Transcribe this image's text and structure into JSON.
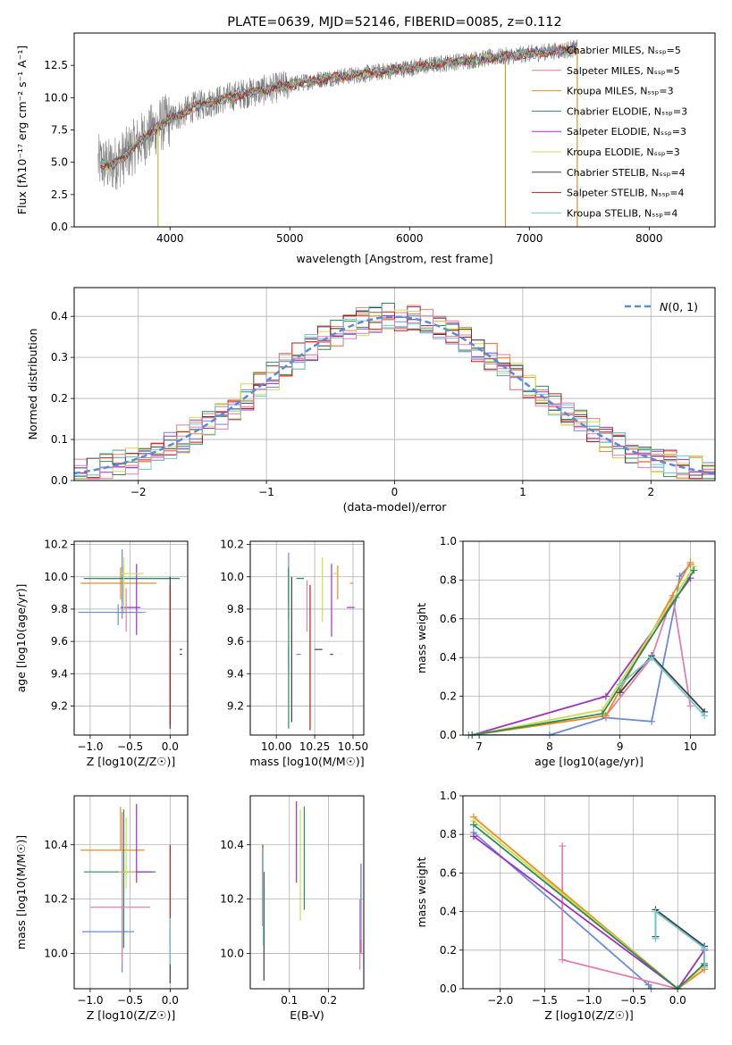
{
  "colors": {
    "chabrier_miles": "#6a8bd8",
    "salpeter_miles": "#e77d7d",
    "kroupa_miles": "#f08a1c",
    "chabrier_elodie": "#2e8b57",
    "salpeter_elodie": "#a030c0",
    "kroupa_elodie": "#c8e050",
    "chabrier_stelib": "#404040",
    "salpeter_stelib": "#c01818",
    "kroupa_stelib": "#70c8d0",
    "pink": "#e080b0",
    "gaussian": "#5b8bd8",
    "grid": "#b0b0b0",
    "data_spectrum": "#808080"
  },
  "spectrum": {
    "title": "PLATE=0639, MJD=52146, FIBERID=0085, z=0.112",
    "xlabel": "wavelength [Angstrom, rest frame]",
    "ylabel": "Flux [fλ10⁻¹⁷ erg cm⁻² s⁻¹ A⁻¹]",
    "legend": [
      {
        "label": "Chabrier MILES, N_SSP=5",
        "color_key": "chabrier_miles"
      },
      {
        "label": "Salpeter MILES, N_SSP=5",
        "color_key": "salpeter_miles"
      },
      {
        "label": "Kroupa MILES, N_SSP=3",
        "color_key": "kroupa_miles"
      },
      {
        "label": "Chabrier ELODIE, N_SSP=3",
        "color_key": "chabrier_elodie"
      },
      {
        "label": "Salpeter ELODIE, N_SSP=3",
        "color_key": "salpeter_elodie"
      },
      {
        "label": "Kroupa ELODIE, N_SSP=3",
        "color_key": "kroupa_elodie"
      },
      {
        "label": "Chabrier STELIB, N_SSP=4",
        "color_key": "chabrier_stelib"
      },
      {
        "label": "Salpeter STELIB, N_SSP=4",
        "color_key": "salpeter_stelib"
      },
      {
        "label": "Kroupa STELIB, N_SSP=4",
        "color_key": "kroupa_stelib"
      }
    ]
  },
  "chart_data": [
    {
      "type": "line",
      "id": "spectrum",
      "xlim": [
        3200,
        8550
      ],
      "ylim": [
        0,
        15
      ],
      "xticks": [
        4000,
        5000,
        6000,
        7000,
        8000
      ],
      "yticks": [
        0.0,
        2.5,
        5.0,
        7.5,
        10.0,
        12.5
      ],
      "continuum": {
        "x": [
          3400,
          3500,
          3600,
          3700,
          3800,
          3900,
          4000,
          4200,
          4400,
          4600,
          4800,
          5000,
          5300,
          5600,
          6000,
          6400,
          6800,
          7200,
          7400
        ],
        "y": [
          5.0,
          4.7,
          5.3,
          6.2,
          7.0,
          7.8,
          8.3,
          9.3,
          9.8,
          10.3,
          10.6,
          11.0,
          11.5,
          11.8,
          12.3,
          12.8,
          13.2,
          13.6,
          13.8
        ]
      },
      "dropouts": [
        3900,
        6800,
        7400
      ],
      "wavelength_range": [
        3400,
        7400
      ],
      "grid": false
    },
    {
      "type": "histogram",
      "id": "residuals",
      "xlabel": "(data-model)/error",
      "ylabel": "Normed distribution",
      "xlim": [
        -2.5,
        2.5
      ],
      "ylim": [
        0,
        0.47
      ],
      "xticks": [
        -2,
        -1,
        0,
        1,
        2
      ],
      "yticks": [
        0.0,
        0.1,
        0.2,
        0.3,
        0.4
      ],
      "bin_width": 0.1,
      "legend": "N(0,1)",
      "legend_position": "top-right",
      "grid": true
    },
    {
      "type": "scatter",
      "id": "age_vs_Z",
      "xlabel": "Z [log10(Z/Z☉)]",
      "ylabel": "age  [log10(age/yr)]",
      "xlim": [
        -1.2,
        0.22
      ],
      "ylim": [
        9.02,
        10.22
      ],
      "xticks": [
        -1.0,
        -0.5,
        0.0
      ],
      "xticklabels": [
        "−1.0",
        "−0.5",
        "0.0"
      ],
      "yticks": [
        9.2,
        9.4,
        9.6,
        9.8,
        10.0,
        10.2
      ],
      "grid": true,
      "points": [
        {
          "c": "chabrier_miles",
          "x": -0.6,
          "y": 9.99,
          "xe": [
            -0.3,
            0.6
          ],
          "ye": [
            0.25,
            0.18
          ]
        },
        {
          "c": "kroupa_miles",
          "x": -0.62,
          "y": 9.96,
          "xe": [
            -0.5,
            0.45
          ],
          "ye": [
            0.1,
            0.1
          ]
        },
        {
          "c": "chabrier_elodie",
          "x": -0.58,
          "y": 9.99,
          "xe": [
            -0.5,
            0.7
          ],
          "ye": [
            0.15,
            0.08
          ]
        },
        {
          "c": "salpeter_elodie",
          "x": -0.42,
          "y": 9.81,
          "xe": [
            -0.2,
            0.05
          ],
          "ye": [
            0.17,
            0.27
          ]
        },
        {
          "c": "kroupa_elodie",
          "x": -0.58,
          "y": 10.02,
          "xe": [
            -0.03,
            0.25
          ],
          "ye": [
            0.25,
            0.1
          ]
        },
        {
          "c": "pink",
          "x": -0.55,
          "y": 9.78,
          "xe": [
            -0.15,
            0.25
          ],
          "ye": [
            0.12,
            0.15
          ]
        },
        {
          "c": "chabrier_miles",
          "x": -0.65,
          "y": 9.78,
          "xe": [
            -0.5,
            0.3
          ],
          "ye": [
            0.08,
            0.05
          ]
        },
        {
          "c": "chabrier_stelib",
          "x": 0.0,
          "y": 9.55,
          "xe": [
            0.12,
            0.15
          ],
          "ye": [
            0.49,
            0.45
          ]
        },
        {
          "c": "salpeter_stelib",
          "x": 0.0,
          "y": 9.52,
          "xe": [
            0.12,
            0.15
          ],
          "ye": [
            0.44,
            0.43
          ]
        }
      ]
    },
    {
      "type": "scatter",
      "id": "age_vs_mass",
      "xlabel": "mass [log10(M/M☉)]",
      "ylabel": "",
      "xlim": [
        9.83,
        10.57
      ],
      "ylim": [
        9.02,
        10.22
      ],
      "xticks": [
        10.0,
        10.25,
        10.5
      ],
      "yticks": [
        9.2,
        9.4,
        9.6,
        9.8,
        10.0,
        10.2
      ],
      "grid": true,
      "points": [
        {
          "c": "chabrier_miles",
          "x": 10.08,
          "y": 9.99,
          "xe": [
            0.1,
            0.08
          ],
          "ye": [
            0.25,
            0.16
          ]
        },
        {
          "c": "kroupa_miles",
          "x": 10.4,
          "y": 9.96,
          "xe": [
            0.08,
            0.1
          ],
          "ye": [
            0.1,
            0.11
          ]
        },
        {
          "c": "chabrier_elodie",
          "x": 10.08,
          "y": 9.99,
          "xe": [
            0.1,
            0.05
          ],
          "ye": [
            0.15,
            0.07
          ]
        },
        {
          "c": "salpeter_elodie",
          "x": 10.36,
          "y": 9.81,
          "xe": [
            0.1,
            0.15
          ],
          "ye": [
            0.18,
            0.27
          ]
        },
        {
          "c": "kroupa_elodie",
          "x": 10.3,
          "y": 10.02,
          "xe": [
            0.07,
            0.1
          ],
          "ye": [
            0.3,
            0.1
          ]
        },
        {
          "c": "pink",
          "x": 10.2,
          "y": 9.78,
          "xe": [
            0.1,
            0.1
          ],
          "ye": [
            0.12,
            0.2
          ]
        },
        {
          "c": "chabrier_miles",
          "x": 10.08,
          "y": 9.52,
          "xe": [
            0.08,
            0.05
          ],
          "ye": [
            0.1,
            0.05
          ]
        },
        {
          "c": "chabrier_stelib",
          "x": 10.1,
          "y": 9.55,
          "xe": [
            0.2,
            0.15
          ],
          "ye": [
            0.45,
            0.45
          ]
        },
        {
          "c": "salpeter_stelib",
          "x": 10.22,
          "y": 9.52,
          "xe": [
            0.13,
            0.15
          ],
          "ye": [
            0.47,
            0.43
          ]
        },
        {
          "c": "chabrier_elodie",
          "x": 10.08,
          "y": 9.75,
          "xe": [
            0.0,
            0.0
          ],
          "ye": [
            0.69,
            0.3
          ]
        }
      ]
    },
    {
      "type": "line",
      "id": "weight_vs_age",
      "xlabel": "age  [log10(age/yr)]",
      "ylabel": "mass weight",
      "xlim": [
        6.77,
        10.35
      ],
      "ylim": [
        0,
        1.0
      ],
      "xticks": [
        7,
        8,
        9,
        10
      ],
      "yticks": [
        0.0,
        0.2,
        0.4,
        0.6,
        0.8,
        1.0
      ],
      "grid": true,
      "series": [
        {
          "c": "chabrier_miles",
          "x": [
            6.85,
            8.0,
            8.8,
            9.45,
            9.8,
            9.85,
            10.0
          ],
          "y": [
            0.0,
            0.0,
            0.09,
            0.07,
            0.71,
            0.82,
            0.88
          ]
        },
        {
          "c": "pink",
          "x": [
            8.8,
            9.45,
            9.75,
            10.0
          ],
          "y": [
            0.1,
            0.4,
            0.72,
            0.15
          ]
        },
        {
          "c": "kroupa_miles",
          "x": [
            6.9,
            8.8,
            10.0
          ],
          "y": [
            0.0,
            0.1,
            0.89
          ]
        },
        {
          "c": "salpeter_elodie",
          "x": [
            6.9,
            8.8,
            10.0
          ],
          "y": [
            0.0,
            0.2,
            0.81
          ]
        },
        {
          "c": "kroupa_elodie",
          "x": [
            6.9,
            8.75,
            10.05
          ],
          "y": [
            0.0,
            0.13,
            0.87
          ]
        },
        {
          "c": "chabrier_elodie",
          "x": [
            6.9,
            8.75,
            10.05
          ],
          "y": [
            0.0,
            0.11,
            0.85
          ]
        },
        {
          "c": "chabrier_stelib",
          "x": [
            9.0,
            9.45,
            10.2
          ],
          "y": [
            0.22,
            0.41,
            0.12
          ]
        },
        {
          "c": "kroupa_stelib",
          "x": [
            9.0,
            9.45,
            10.2
          ],
          "y": [
            0.26,
            0.4,
            0.1
          ]
        }
      ]
    },
    {
      "type": "scatter",
      "id": "mass_vs_Z",
      "xlabel": "Z [log10(Z/Z☉)]",
      "ylabel": "mass [log10(M/M☉)]",
      "xlim": [
        -1.2,
        0.22
      ],
      "ylim": [
        9.87,
        10.58
      ],
      "xticks": [
        -1.0,
        -0.5,
        0.0
      ],
      "xticklabels": [
        "−1.0",
        "−0.5",
        "0.0"
      ],
      "yticks": [
        10.0,
        10.2,
        10.4
      ],
      "grid": true,
      "points": [
        {
          "c": "chabrier_miles",
          "x": -0.6,
          "y": 10.08,
          "xe": [
            -0.5,
            0.15
          ],
          "ye": [
            0.15,
            0.1
          ]
        },
        {
          "c": "kroupa_miles",
          "x": -0.62,
          "y": 10.38,
          "xe": [
            -0.5,
            0.3
          ],
          "ye": [
            0.0,
            0.16
          ]
        },
        {
          "c": "chabrier_elodie",
          "x": -0.58,
          "y": 10.3,
          "xe": [
            -0.5,
            0.4
          ],
          "ye": [
            0.28,
            0.23
          ]
        },
        {
          "c": "salpeter_elodie",
          "x": -0.42,
          "y": 10.3,
          "xe": [
            -0.25,
            0.2
          ],
          "ye": [
            0.04,
            0.25
          ]
        },
        {
          "c": "kroupa_elodie",
          "x": -0.55,
          "y": 10.3,
          "xe": [
            -0.1,
            0.12
          ],
          "ye": [
            0.06,
            0.2
          ]
        },
        {
          "c": "pink",
          "x": -0.6,
          "y": 10.17,
          "xe": [
            -0.4,
            0.35
          ],
          "ye": [
            0.2,
            0.35
          ]
        },
        {
          "c": "chabrier_stelib",
          "x": 0.0,
          "y": 10.09,
          "xe": [
            0.12,
            0.12
          ],
          "ye": [
            0.2,
            0.0
          ]
        },
        {
          "c": "salpeter_stelib",
          "x": 0.0,
          "y": 10.22,
          "xe": [
            0.12,
            0.12
          ],
          "ye": [
            0.19,
            0.18
          ]
        },
        {
          "c": "kroupa_stelib",
          "x": 0.0,
          "y": 10.1,
          "xe": [
            0.15,
            0.15
          ],
          "ye": [
            0.14,
            0.03
          ]
        }
      ]
    },
    {
      "type": "errorbar",
      "id": "mass_vs_ebv",
      "xlabel": "E(B-V)",
      "ylabel": "",
      "xlim": [
        0.0,
        0.29
      ],
      "ylim": [
        9.87,
        10.58
      ],
      "xticks": [
        0.1,
        0.2
      ],
      "yticks": [
        10.0,
        10.2,
        10.4
      ],
      "grid": true,
      "points": [
        {
          "c": "chabrier_stelib",
          "x": 0.035,
          "y": 10.1,
          "ye": [
            0.2,
            0.2
          ]
        },
        {
          "c": "salpeter_stelib",
          "x": 0.032,
          "y": 10.2,
          "ye": [
            0.1,
            0.2
          ]
        },
        {
          "c": "kroupa_stelib",
          "x": 0.033,
          "y": 10.15,
          "ye": [
            0.12,
            0.24
          ]
        },
        {
          "c": "salpeter_elodie",
          "x": 0.118,
          "y": 10.4,
          "ye": [
            0.14,
            0.16
          ]
        },
        {
          "c": "kroupa_elodie",
          "x": 0.128,
          "y": 10.3,
          "ye": [
            0.18,
            0.23
          ]
        },
        {
          "c": "chabrier_elodie",
          "x": 0.138,
          "y": 10.35,
          "ye": [
            0.19,
            0.19
          ]
        },
        {
          "c": "salpeter_elodie",
          "x": 0.283,
          "y": 10.2,
          "ye": [
            0.2,
            0.13
          ]
        },
        {
          "c": "chabrier_miles",
          "x": 0.283,
          "y": 10.25,
          "ye": [
            0.2,
            0.08
          ]
        },
        {
          "c": "pink",
          "x": 0.28,
          "y": 10.1,
          "ye": [
            0.16,
            0.1
          ]
        }
      ]
    },
    {
      "type": "line",
      "id": "weight_vs_Z",
      "xlabel": "Z [log10(Z/Z☉)]",
      "ylabel": "mass weight",
      "xlim": [
        -2.42,
        0.42
      ],
      "ylim": [
        0,
        1.0
      ],
      "xticks": [
        -2.0,
        -1.5,
        -1.0,
        -0.5,
        0.0
      ],
      "xticklabels": [
        "−2.0",
        "−1.5",
        "−1.0",
        "−0.5",
        "0.0"
      ],
      "yticks": [
        0.0,
        0.2,
        0.4,
        0.6,
        0.8,
        1.0
      ],
      "grid": true,
      "series": [
        {
          "c": "chabrier_miles",
          "x": [
            -2.3,
            -0.33,
            -0.3
          ],
          "y": [
            0.81,
            0.02,
            0.0
          ]
        },
        {
          "c": "pink",
          "x": [
            -1.3,
            -1.3,
            0.0,
            0.3
          ],
          "y": [
            0.74,
            0.15,
            0.0,
            0.1
          ]
        },
        {
          "c": "kroupa_miles",
          "x": [
            -2.3,
            0.0,
            0.3
          ],
          "y": [
            0.89,
            0.0,
            0.1
          ]
        },
        {
          "c": "salpeter_elodie",
          "x": [
            -2.3,
            0.0,
            0.3
          ],
          "y": [
            0.79,
            0.0,
            0.2
          ]
        },
        {
          "c": "kroupa_elodie",
          "x": [
            -2.3,
            0.0,
            0.3
          ],
          "y": [
            0.87,
            0.0,
            0.12
          ]
        },
        {
          "c": "chabrier_elodie",
          "x": [
            -2.3,
            0.0,
            0.3
          ],
          "y": [
            0.85,
            0.0,
            0.13
          ]
        },
        {
          "c": "chabrier_stelib",
          "x": [
            -0.25,
            -0.25,
            0.3,
            0.3
          ],
          "y": [
            0.27,
            0.41,
            0.22,
            0.12
          ]
        },
        {
          "c": "kroupa_stelib",
          "x": [
            -0.25,
            -0.25,
            0.3,
            0.3
          ],
          "y": [
            0.26,
            0.4,
            0.21,
            0.11
          ]
        }
      ]
    }
  ]
}
